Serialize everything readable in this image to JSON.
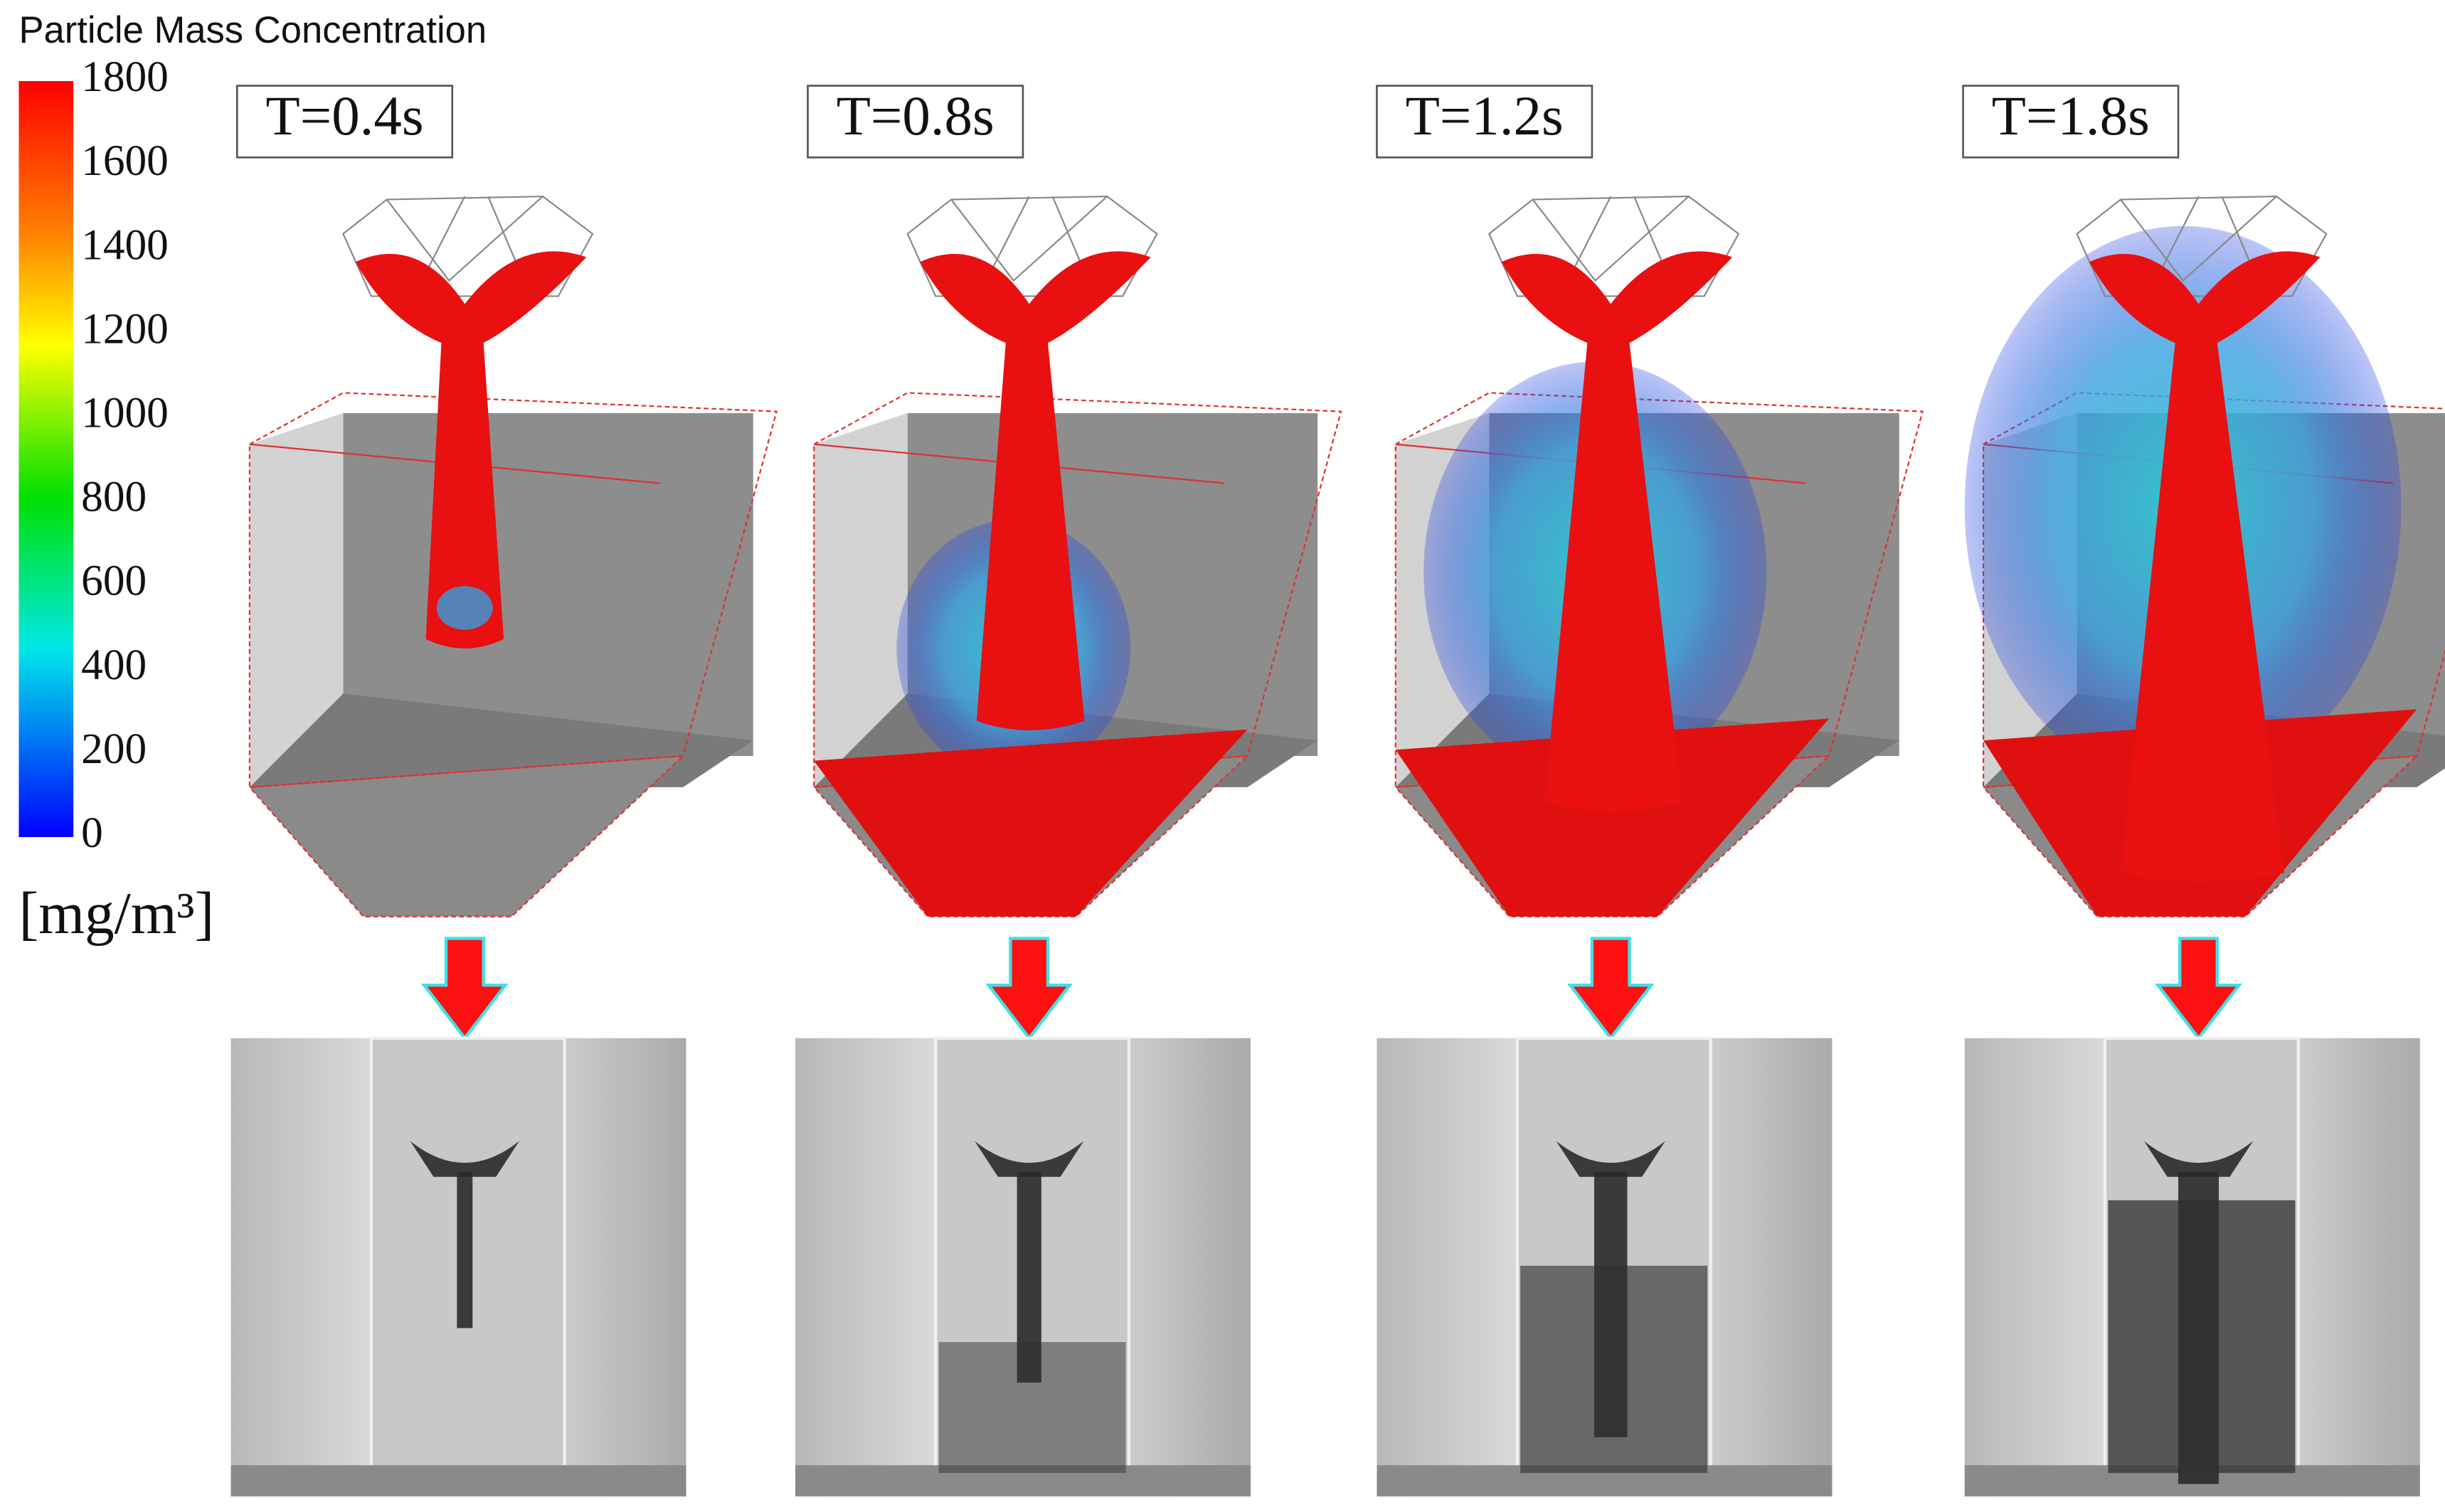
{
  "colorbar": {
    "title": "Particle Mass Concentration",
    "ticks": [
      1800,
      1600,
      1400,
      1200,
      1000,
      800,
      600,
      400,
      200,
      0
    ],
    "unit": "[mg/m³]"
  },
  "panels": [
    {
      "label": "T=0.4s"
    },
    {
      "label": "T=0.8s"
    },
    {
      "label": "T=1.2s"
    },
    {
      "label": "T=1.8s"
    }
  ]
}
